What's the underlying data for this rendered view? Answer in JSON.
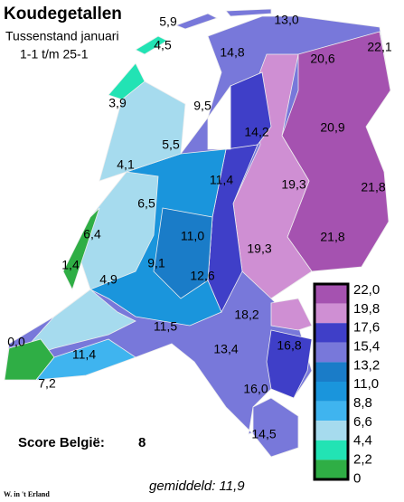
{
  "header": {
    "title": "Koudegetallen",
    "subtitle": "Tussenstand januari",
    "period": "1-1 t/m 25-1"
  },
  "labels": [
    "5,9",
    "13,0",
    "4,5",
    "22,1",
    "14,8",
    "20,6",
    "3,9",
    "9,5",
    "14,2",
    "20,9",
    "5,5",
    "4,1",
    "19,3",
    "21,8",
    "11,4",
    "6,5",
    "6,4",
    "11,0",
    "19,3",
    "21,8",
    "1,4",
    "9,1",
    "4,9",
    "12,6",
    "18,2",
    "11,5",
    "13,4",
    "16,8",
    "0,0",
    "11,4",
    "7,2",
    "16,0",
    "14,5"
  ],
  "legend": {
    "labels": [
      "22,0",
      "19,8",
      "17,6",
      "15,4",
      "13,2",
      "11,0",
      "8,8",
      "6,6",
      "4,4",
      "2,2",
      "0"
    ],
    "colors": [
      "#a552b0",
      "#cf8fd3",
      "#3f3fc8",
      "#7878da",
      "#1a7cc8",
      "#1a95dc",
      "#3fb4ef",
      "#a6dbee",
      "#22e3b4",
      "#2fae45"
    ]
  },
  "score": {
    "label": "Score België:",
    "value": "8"
  },
  "average": "gemiddeld: 11,9",
  "credit": "W. in 't Erland"
}
